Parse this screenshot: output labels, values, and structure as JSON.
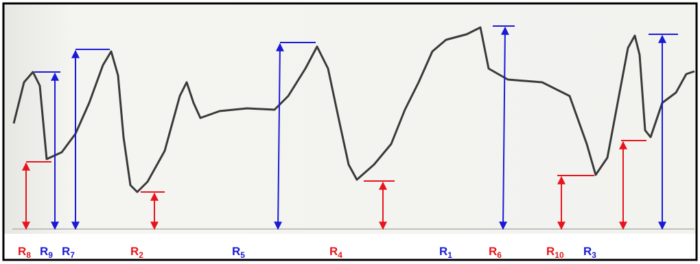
{
  "labels": [
    {
      "base": "R",
      "subscript": "8",
      "color": "#e8141c"
    },
    {
      "base": "R",
      "subscript": "9",
      "color": "#1a1ad6"
    },
    {
      "base": "R",
      "subscript": "7",
      "color": "#1a1ad6"
    },
    {
      "base": "R",
      "subscript": "2",
      "color": "#e8141c"
    },
    {
      "base": "R",
      "subscript": "5",
      "color": "#1a1ad6"
    },
    {
      "base": "R",
      "subscript": "4",
      "color": "#e8141c"
    },
    {
      "base": "R",
      "subscript": "1",
      "color": "#1a1ad6"
    },
    {
      "base": "R",
      "subscript": "6",
      "color": "#e8141c"
    },
    {
      "base": "R",
      "subscript": "10",
      "color": "#e8141c"
    },
    {
      "base": "R",
      "subscript": "3",
      "color": "#1a1ad6"
    }
  ]
}
